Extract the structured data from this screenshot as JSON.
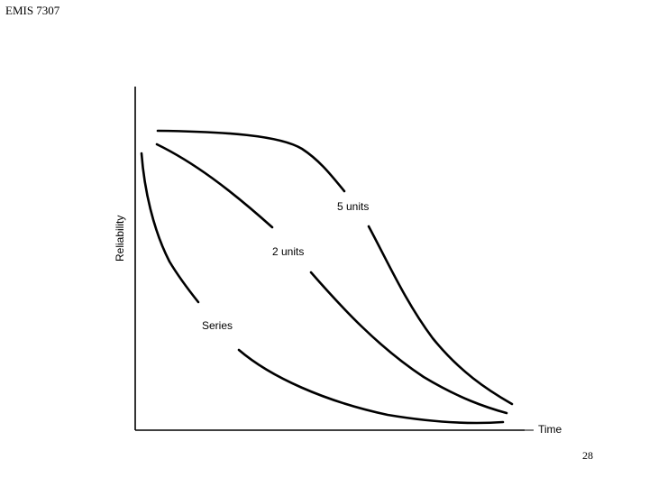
{
  "header": {
    "title": "EMIS 7307"
  },
  "footer": {
    "page_number": "28"
  },
  "chart_data": {
    "type": "line",
    "xlabel": "Time",
    "ylabel": "Reliability",
    "series": [
      {
        "name": "5 units"
      },
      {
        "name": "2 units"
      },
      {
        "name": "Series"
      }
    ]
  }
}
